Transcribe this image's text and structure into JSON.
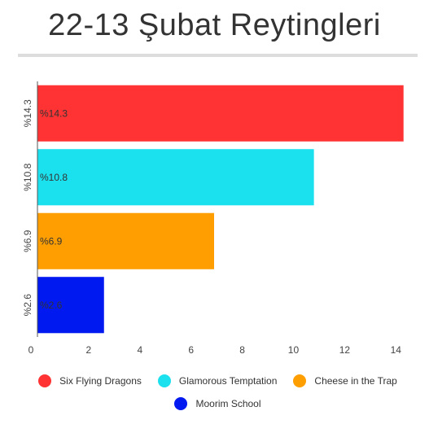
{
  "title": "22-13 Şubat Reytingleri",
  "chart_data": {
    "type": "bar",
    "orientation": "horizontal",
    "title": "22-13 Şubat Reytingleri",
    "categories": [
      "%14.3",
      "%10.8",
      "%6.9",
      "%2.6"
    ],
    "data_labels": [
      "%14.3",
      "%10.8",
      "%6.9",
      "%2.6"
    ],
    "series": [
      {
        "name": "Six Flying Dragons",
        "values": [
          14.3,
          null,
          null,
          null
        ],
        "color": "#ff3333"
      },
      {
        "name": "Glamorous Temptation",
        "values": [
          null,
          10.8,
          null,
          null
        ],
        "color": "#1be0ee"
      },
      {
        "name": "Cheese in the Trap",
        "values": [
          null,
          null,
          6.9,
          null
        ],
        "color": "#ff9e00"
      },
      {
        "name": "Moorim School",
        "values": [
          null,
          null,
          null,
          2.6
        ],
        "color": "#0019f0"
      }
    ],
    "values": [
      14.3,
      10.8,
      6.9,
      2.6
    ],
    "xlim": [
      0,
      14.5
    ],
    "xticks": [
      "0",
      "2",
      "4",
      "6",
      "8",
      "10",
      "12",
      "14"
    ],
    "grid": false,
    "legend_position": "bottom"
  },
  "legend": [
    {
      "label": "Six Flying Dragons",
      "color": "#ff3333"
    },
    {
      "label": "Glamorous Temptation",
      "color": "#1be0ee"
    },
    {
      "label": "Cheese in the Trap",
      "color": "#ff9e00"
    },
    {
      "label": "Moorim School",
      "color": "#0019f0"
    }
  ]
}
